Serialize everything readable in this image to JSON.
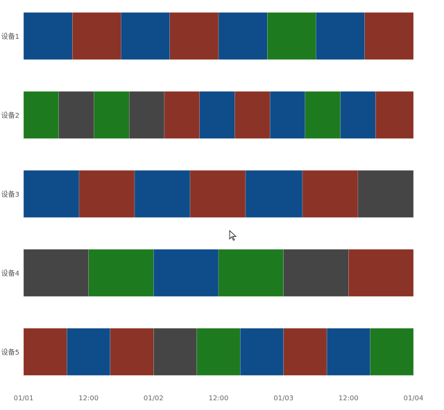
{
  "chart_data": {
    "type": "timeline",
    "x_start": "01/01 00:00",
    "x_end": "01/04 00:00",
    "x_unit": "hours",
    "x_tick_labels": [
      "01/01",
      "12:00",
      "01/02",
      "12:00",
      "01/03",
      "12:00",
      "01/04"
    ],
    "status_colors": {
      "blue": "#0f4c8a",
      "red": "#8b3326",
      "green": "#1e7a1e",
      "gray": "#454545"
    },
    "rows": [
      {
        "label": "设备1",
        "segments": [
          {
            "start": 0,
            "end": 9,
            "status": "blue"
          },
          {
            "start": 9,
            "end": 18,
            "status": "red"
          },
          {
            "start": 18,
            "end": 27,
            "status": "blue"
          },
          {
            "start": 27,
            "end": 36,
            "status": "red"
          },
          {
            "start": 36,
            "end": 45,
            "status": "blue"
          },
          {
            "start": 45,
            "end": 54,
            "status": "green"
          },
          {
            "start": 54,
            "end": 63,
            "status": "blue"
          },
          {
            "start": 63,
            "end": 72,
            "status": "red"
          }
        ]
      },
      {
        "label": "设备2",
        "segments": [
          {
            "start": 0,
            "end": 6.5,
            "status": "green"
          },
          {
            "start": 6.5,
            "end": 13,
            "status": "gray"
          },
          {
            "start": 13,
            "end": 19.5,
            "status": "green"
          },
          {
            "start": 19.5,
            "end": 26,
            "status": "gray"
          },
          {
            "start": 26,
            "end": 32.5,
            "status": "red"
          },
          {
            "start": 32.5,
            "end": 39,
            "status": "blue"
          },
          {
            "start": 39,
            "end": 45.5,
            "status": "red"
          },
          {
            "start": 45.5,
            "end": 52,
            "status": "blue"
          },
          {
            "start": 52,
            "end": 58.5,
            "status": "green"
          },
          {
            "start": 58.5,
            "end": 65,
            "status": "blue"
          },
          {
            "start": 65,
            "end": 72,
            "status": "red"
          }
        ]
      },
      {
        "label": "设备3",
        "segments": [
          {
            "start": 0,
            "end": 10.25,
            "status": "blue"
          },
          {
            "start": 10.25,
            "end": 20.5,
            "status": "red"
          },
          {
            "start": 20.5,
            "end": 30.75,
            "status": "blue"
          },
          {
            "start": 30.75,
            "end": 41,
            "status": "red"
          },
          {
            "start": 41,
            "end": 51.5,
            "status": "blue"
          },
          {
            "start": 51.5,
            "end": 61.75,
            "status": "red"
          },
          {
            "start": 61.75,
            "end": 72,
            "status": "gray"
          }
        ]
      },
      {
        "label": "设备4",
        "segments": [
          {
            "start": 0,
            "end": 12,
            "status": "gray"
          },
          {
            "start": 12,
            "end": 24,
            "status": "green"
          },
          {
            "start": 24,
            "end": 36,
            "status": "blue"
          },
          {
            "start": 36,
            "end": 48,
            "status": "green"
          },
          {
            "start": 48,
            "end": 60,
            "status": "gray"
          },
          {
            "start": 60,
            "end": 72,
            "status": "red"
          }
        ]
      },
      {
        "label": "设备5",
        "segments": [
          {
            "start": 0,
            "end": 8,
            "status": "red"
          },
          {
            "start": 8,
            "end": 16,
            "status": "blue"
          },
          {
            "start": 16,
            "end": 24,
            "status": "red"
          },
          {
            "start": 24,
            "end": 32,
            "status": "gray"
          },
          {
            "start": 32,
            "end": 40,
            "status": "green"
          },
          {
            "start": 40,
            "end": 48,
            "status": "blue"
          },
          {
            "start": 48,
            "end": 56,
            "status": "red"
          },
          {
            "start": 56,
            "end": 64,
            "status": "blue"
          },
          {
            "start": 64,
            "end": 72,
            "status": "green"
          }
        ]
      }
    ]
  }
}
